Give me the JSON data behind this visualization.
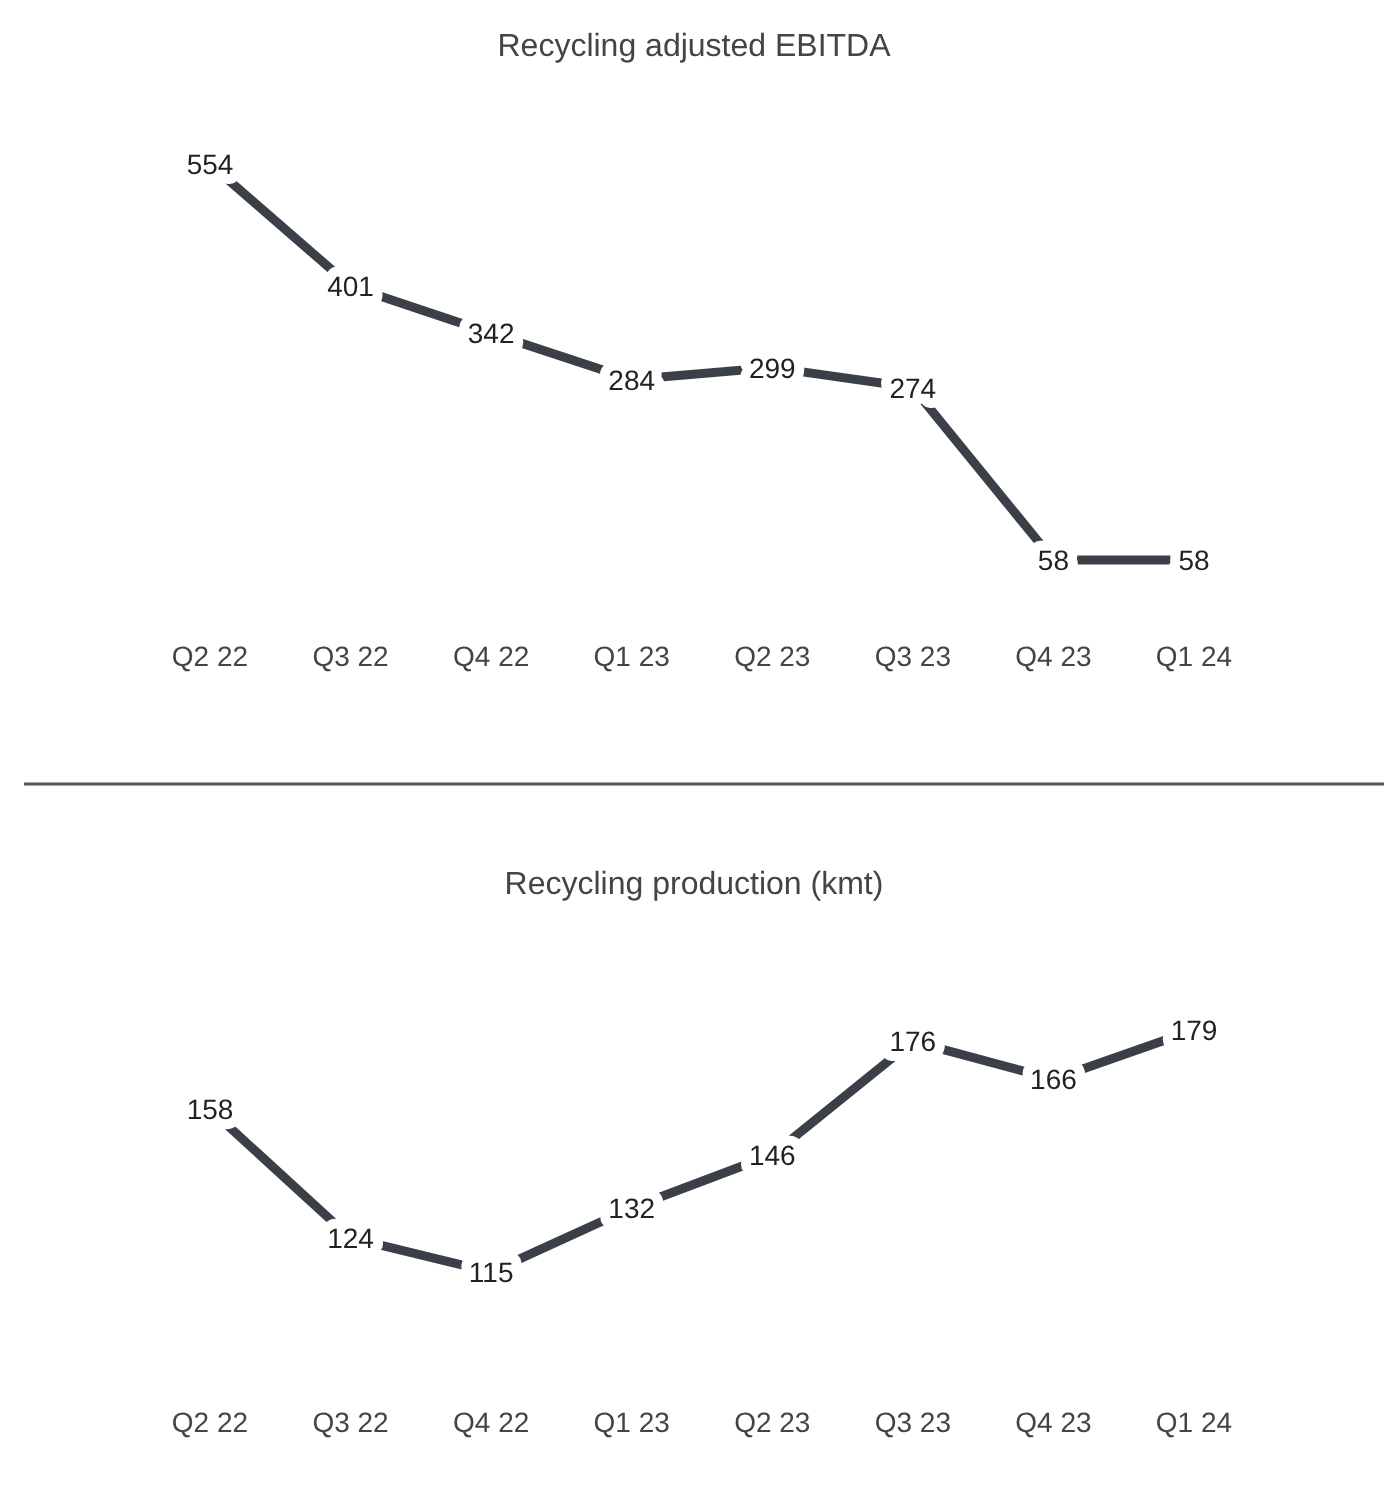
{
  "chart_data": [
    {
      "type": "line",
      "title": "Recycling adjusted EBITDA",
      "categories": [
        "Q2 22",
        "Q3 22",
        "Q4 22",
        "Q1 23",
        "Q2 23",
        "Q3 23",
        "Q4 23",
        "Q1 24"
      ],
      "series": [
        {
          "color": "#3b4048",
          "values": [
            554,
            401,
            342,
            284,
            299,
            274,
            58,
            58
          ]
        }
      ],
      "data_labels": true,
      "marker": "none",
      "grid": false,
      "tick_labels": "x"
    },
    {
      "type": "line",
      "title": "Recycling production (kmt)",
      "categories": [
        "Q2 22",
        "Q3 22",
        "Q4 22",
        "Q1 23",
        "Q2 23",
        "Q3 23",
        "Q4 23",
        "Q1 24"
      ],
      "series": [
        {
          "color": "#3b4048",
          "values": [
            158,
            124,
            115,
            132,
            146,
            176,
            166,
            179
          ]
        }
      ],
      "data_labels": true,
      "marker": "none",
      "grid": false,
      "tick_labels": "x"
    }
  ]
}
